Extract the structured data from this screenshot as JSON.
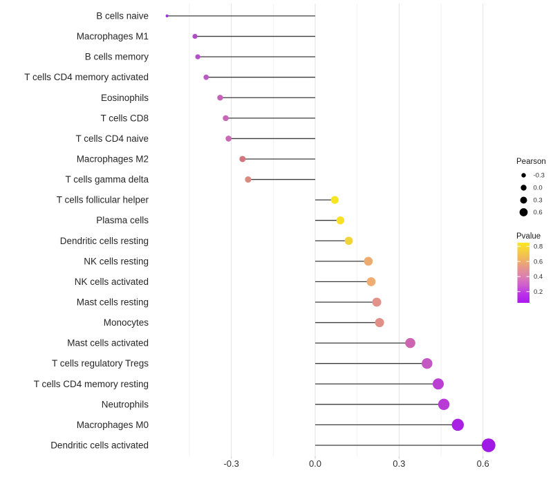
{
  "chart_data": {
    "type": "scatter",
    "subtype": "lollipop",
    "title": "",
    "xlabel": "",
    "ylabel": "",
    "xlim": [
      -0.5875,
      0.6775
    ],
    "x_ticks": {
      "values": [
        -0.3,
        0.0,
        0.3,
        0.6
      ],
      "labels": [
        "-0.3",
        "0.0",
        "0.3",
        "0.6"
      ]
    },
    "x_minor_ticks": [
      -0.45,
      -0.15,
      0.15,
      0.45
    ],
    "grid": true,
    "cells": [
      {
        "label": "B cells naive",
        "pearson": -0.53,
        "pvalue": 0.07,
        "color": "#9932d8"
      },
      {
        "label": "Macrophages M1",
        "pearson": -0.43,
        "pvalue": 0.17,
        "color": "#ae4ec4"
      },
      {
        "label": "B cells memory",
        "pearson": -0.42,
        "pvalue": 0.18,
        "color": "#b252c6"
      },
      {
        "label": "T cells CD4 memory activated",
        "pearson": -0.39,
        "pvalue": 0.22,
        "color": "#ba5ac2"
      },
      {
        "label": "Eosinophils",
        "pearson": -0.34,
        "pvalue": 0.28,
        "color": "#c463ba"
      },
      {
        "label": "T cells CD8",
        "pearson": -0.32,
        "pvalue": 0.3,
        "color": "#c767b5"
      },
      {
        "label": "T cells CD4 naive",
        "pearson": -0.31,
        "pvalue": 0.31,
        "color": "#c96ab2"
      },
      {
        "label": "Macrophages M2",
        "pearson": -0.26,
        "pvalue": 0.42,
        "color": "#d3757f"
      },
      {
        "label": "T cells gamma delta",
        "pearson": -0.24,
        "pvalue": 0.46,
        "color": "#dc8a7f"
      },
      {
        "label": "T cells follicular helper",
        "pearson": 0.07,
        "pvalue": 0.82,
        "color": "#f6e521"
      },
      {
        "label": "Plasma cells",
        "pearson": 0.09,
        "pvalue": 0.8,
        "color": "#f6e126"
      },
      {
        "label": "Dendritic cells resting",
        "pearson": 0.12,
        "pvalue": 0.74,
        "color": "#f0d53a"
      },
      {
        "label": "NK cells resting",
        "pearson": 0.19,
        "pvalue": 0.58,
        "color": "#eeab70"
      },
      {
        "label": "NK cells activated",
        "pearson": 0.2,
        "pvalue": 0.57,
        "color": "#efad72"
      },
      {
        "label": "Mast cells resting",
        "pearson": 0.22,
        "pvalue": 0.5,
        "color": "#e2918b"
      },
      {
        "label": "Monocytes",
        "pearson": 0.23,
        "pvalue": 0.49,
        "color": "#e28f88"
      },
      {
        "label": "Mast cells activated",
        "pearson": 0.34,
        "pvalue": 0.33,
        "color": "#cd64b1"
      },
      {
        "label": "T cells regulatory  Tregs",
        "pearson": 0.4,
        "pvalue": 0.23,
        "color": "#c358c3"
      },
      {
        "label": "T cells CD4 memory resting",
        "pearson": 0.44,
        "pvalue": 0.15,
        "color": "#bb3fd4"
      },
      {
        "label": "Neutrophils",
        "pearson": 0.46,
        "pvalue": 0.13,
        "color": "#b93bd6"
      },
      {
        "label": "Macrophages M0",
        "pearson": 0.51,
        "pvalue": 0.09,
        "color": "#a921e3"
      },
      {
        "label": "Dendritic cells activated",
        "pearson": 0.62,
        "pvalue": 0.04,
        "color": "#a01ae6"
      }
    ],
    "legend": {
      "position": "right",
      "size_legend": {
        "title": "Pearson",
        "labels": [
          "-0.3",
          "0.0",
          "0.3",
          "0.6"
        ],
        "dot_color": "#000000"
      },
      "color_legend": {
        "title": "Pvalue",
        "tick_labels": [
          "0.8",
          "0.6",
          "0.4",
          "0.2"
        ],
        "tick_values": [
          0.8,
          0.6,
          0.4,
          0.2
        ],
        "bar_top_value": 0.85,
        "bar_bottom_value": 0.05,
        "gradient_top_to_bottom": [
          "#fbe723",
          "#f5cd42",
          "#f0b263",
          "#e59490",
          "#db7fb2",
          "#cd5bd0",
          "#bb32e8",
          "#ac18f0"
        ]
      }
    },
    "style_colors": {
      "background": "#ffffff",
      "grid_major": "#e3e3e3",
      "grid_minor": "#f0f0f0",
      "stem": "#3a3a3a",
      "axis_tick": "#c9c9c9"
    }
  }
}
